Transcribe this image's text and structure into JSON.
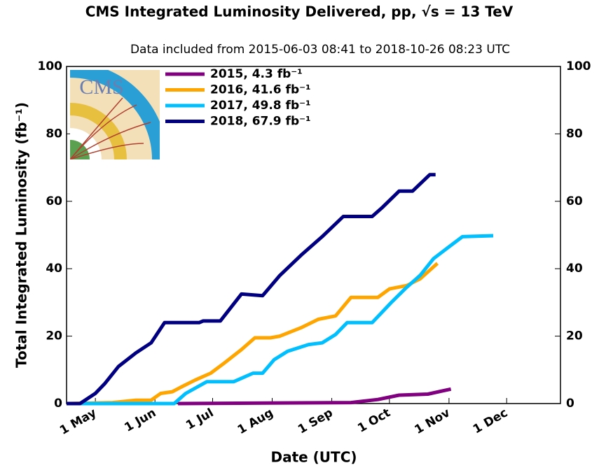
{
  "chart_data": {
    "type": "line",
    "title": "CMS Integrated Luminosity Delivered, pp, √s = 13 TeV",
    "subtitle": "Data included from 2015-06-03 08:41 to 2018-10-26 08:23 UTC",
    "x_label": "Date (UTC)",
    "y_label": "Total Integrated Luminosity (fb⁻¹)",
    "logo_text": "CMS",
    "xlim": [
      106,
      363
    ],
    "xticks": [
      {
        "value": 121,
        "label": "1 May"
      },
      {
        "value": 152,
        "label": "1 Jun"
      },
      {
        "value": 182,
        "label": "1 Jul"
      },
      {
        "value": 213,
        "label": "1 Aug"
      },
      {
        "value": 244,
        "label": "1 Sep"
      },
      {
        "value": 274,
        "label": "1 Oct"
      },
      {
        "value": 305,
        "label": "1 Nov"
      },
      {
        "value": 335,
        "label": "1 Dec"
      }
    ],
    "ylim": [
      0,
      100
    ],
    "yticks": [
      0,
      20,
      40,
      60,
      80,
      100
    ],
    "legend": "upper left",
    "series": [
      {
        "name": "2015, 4.3 fb⁻¹",
        "color": "#800080",
        "x": [
          164,
          254,
          268,
          279,
          294,
          306
        ],
        "values": [
          0,
          0.3,
          1.2,
          2.5,
          2.8,
          4.3
        ]
      },
      {
        "name": "2016, 41.6 fb⁻¹",
        "color": "#ffa500",
        "x": [
          106,
          130,
          142,
          150,
          155,
          161,
          166,
          173,
          181,
          188,
          197,
          204,
          212,
          217,
          228,
          237,
          246,
          254,
          268,
          274,
          283,
          290,
          299
        ],
        "values": [
          0,
          0.3,
          1,
          1,
          3,
          3.5,
          5,
          7,
          9,
          12,
          16,
          19.5,
          19.5,
          20,
          22.5,
          25,
          26,
          31.5,
          31.5,
          34,
          35,
          37,
          41.6
        ]
      },
      {
        "name": "2017, 49.8 fb⁻¹",
        "color": "#00bfff",
        "x": [
          106,
          162,
          168,
          179,
          193,
          203,
          208,
          214,
          221,
          232,
          239,
          246,
          252,
          265,
          275,
          283,
          290,
          297,
          305,
          312,
          328
        ],
        "values": [
          0,
          0,
          3,
          6.5,
          6.5,
          9,
          9,
          13,
          15.5,
          17.5,
          18,
          20.5,
          24,
          24,
          30,
          34.5,
          38,
          43,
          46.5,
          49.5,
          49.8
        ]
      },
      {
        "name": "2018, 67.9 fb⁻¹",
        "color": "#000080",
        "x": [
          106,
          113,
          121,
          126,
          133,
          142,
          150,
          157,
          175,
          177,
          186,
          197,
          208,
          217,
          228,
          239,
          250,
          265,
          270,
          279,
          286,
          295,
          298
        ],
        "values": [
          0,
          0,
          3,
          6,
          11,
          15,
          18,
          24,
          24,
          24.5,
          24.5,
          32.5,
          32,
          38,
          44,
          49.5,
          55.5,
          55.5,
          58,
          63,
          63,
          67.9,
          67.9
        ]
      }
    ]
  }
}
